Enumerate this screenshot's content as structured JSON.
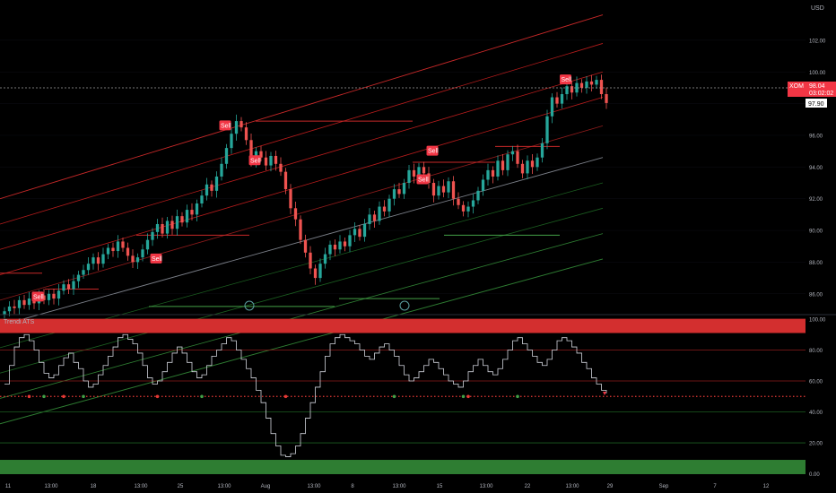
{
  "currency_label": "USD",
  "price_tag": {
    "symbol": "XOM",
    "price": "98.04",
    "countdown": "03:02:02"
  },
  "last_close_label": "97.90",
  "signal_label": "Sell",
  "indicator": {
    "name": "Trendi ATS"
  },
  "colors": {
    "background": "#000000",
    "bull": "#26a69a",
    "bear": "#ef5350",
    "sell": "#f23645",
    "overbought_band": "#d32f2f",
    "oversold_band": "#2e7d32"
  },
  "chart_data": [
    {
      "type": "candlestick",
      "title": "",
      "y_axis": {
        "ticks": [
          86.0,
          88.0,
          90.0,
          92.0,
          94.0,
          96.0,
          98.0,
          100.0,
          102.0
        ],
        "tick_labels": [
          "86.00",
          "88.00",
          "90.00",
          "92.00",
          "94.00",
          "96.00",
          "98.00",
          "100.00",
          "102.00"
        ],
        "range": [
          84.8,
          104.2
        ]
      },
      "x_axis": {
        "tick_labels": [
          "11",
          "13:00",
          "18",
          "13:00",
          "25",
          "13:00",
          "Aug",
          "13:00",
          "8",
          "13:00",
          "15",
          "13:00",
          "22",
          "13:00",
          "29",
          "Sep",
          "7",
          "12"
        ]
      },
      "close_series": [
        84.9,
        85.2,
        85.1,
        85.6,
        85.3,
        85.7,
        85.4,
        85.9,
        85.6,
        86.0,
        85.7,
        86.2,
        86.6,
        86.3,
        86.8,
        87.2,
        87.5,
        87.9,
        88.3,
        87.9,
        88.5,
        88.9,
        88.7,
        89.3,
        88.9,
        88.4,
        88.0,
        88.3,
        88.8,
        89.4,
        89.9,
        90.4,
        89.8,
        90.6,
        90.1,
        90.9,
        90.5,
        91.3,
        91.0,
        91.7,
        92.2,
        92.9,
        92.5,
        93.4,
        94.2,
        95.2,
        96.1,
        96.9,
        96.5,
        95.7,
        94.4,
        95.0,
        94.6,
        94.1,
        94.7,
        94.2,
        93.7,
        92.6,
        91.4,
        90.7,
        89.4,
        88.6,
        87.6,
        87.0,
        87.9,
        88.5,
        89.1,
        88.8,
        89.3,
        89.0,
        89.7,
        90.1,
        89.6,
        90.4,
        91.0,
        90.6,
        91.5,
        91.2,
        92.0,
        92.6,
        92.3,
        93.0,
        93.8,
        93.4,
        94.0,
        93.6,
        93.0,
        92.2,
        92.8,
        92.4,
        93.1,
        92.0,
        91.6,
        91.2,
        91.5,
        91.9,
        92.5,
        93.2,
        93.8,
        93.4,
        94.4,
        93.8,
        94.8,
        95.0,
        94.2,
        93.6,
        94.4,
        94.0,
        94.6,
        95.5,
        97.2,
        98.4,
        98.0,
        98.6,
        99.1,
        98.7,
        99.3,
        99.0,
        99.4,
        99.2,
        99.5,
        98.6,
        98.04
      ],
      "overlays": {
        "channel_lines": [
          "upper regression channel (red)",
          "midline (grey)",
          "lower regression channel (green)"
        ],
        "sell_signals_near_close": [
          88.2,
          94.4,
          96.6,
          95.0,
          93.2,
          99.5,
          85.8
        ]
      }
    },
    {
      "type": "line",
      "title": "Trendi ATS",
      "y_axis": {
        "ticks": [
          0,
          20,
          40,
          60,
          80,
          100
        ],
        "tick_labels": [
          "0.00",
          "20.00",
          "40.00",
          "60.00",
          "80.00",
          "100.00"
        ],
        "range": [
          -2,
          100
        ]
      },
      "levels": [
        0,
        20,
        40,
        50,
        60,
        80,
        100
      ],
      "zones": {
        "overbought": [
          91,
          100
        ],
        "oversold": [
          0,
          9
        ]
      },
      "values": [
        58,
        70,
        82,
        88,
        90,
        86,
        80,
        72,
        65,
        62,
        64,
        70,
        75,
        78,
        72,
        68,
        60,
        56,
        58,
        64,
        70,
        76,
        82,
        88,
        90,
        87,
        84,
        78,
        70,
        62,
        58,
        60,
        66,
        72,
        78,
        82,
        78,
        72,
        66,
        62,
        64,
        70,
        76,
        80,
        84,
        88,
        86,
        80,
        74,
        68,
        62,
        54,
        46,
        36,
        26,
        18,
        12,
        11,
        13,
        18,
        26,
        36,
        46,
        56,
        66,
        76,
        84,
        88,
        90,
        88,
        86,
        84,
        80,
        76,
        74,
        78,
        82,
        84,
        80,
        76,
        70,
        64,
        60,
        62,
        66,
        70,
        74,
        72,
        68,
        64,
        60,
        58,
        56,
        60,
        66,
        70,
        74,
        70,
        66,
        64,
        68,
        74,
        80,
        86,
        88,
        84,
        80,
        76,
        72,
        70,
        74,
        80,
        86,
        88,
        86,
        82,
        78,
        72,
        68,
        62,
        58,
        54,
        52
      ],
      "signal_dots": {
        "baseline": 50,
        "colors": [
          "green",
          "red"
        ]
      }
    }
  ]
}
